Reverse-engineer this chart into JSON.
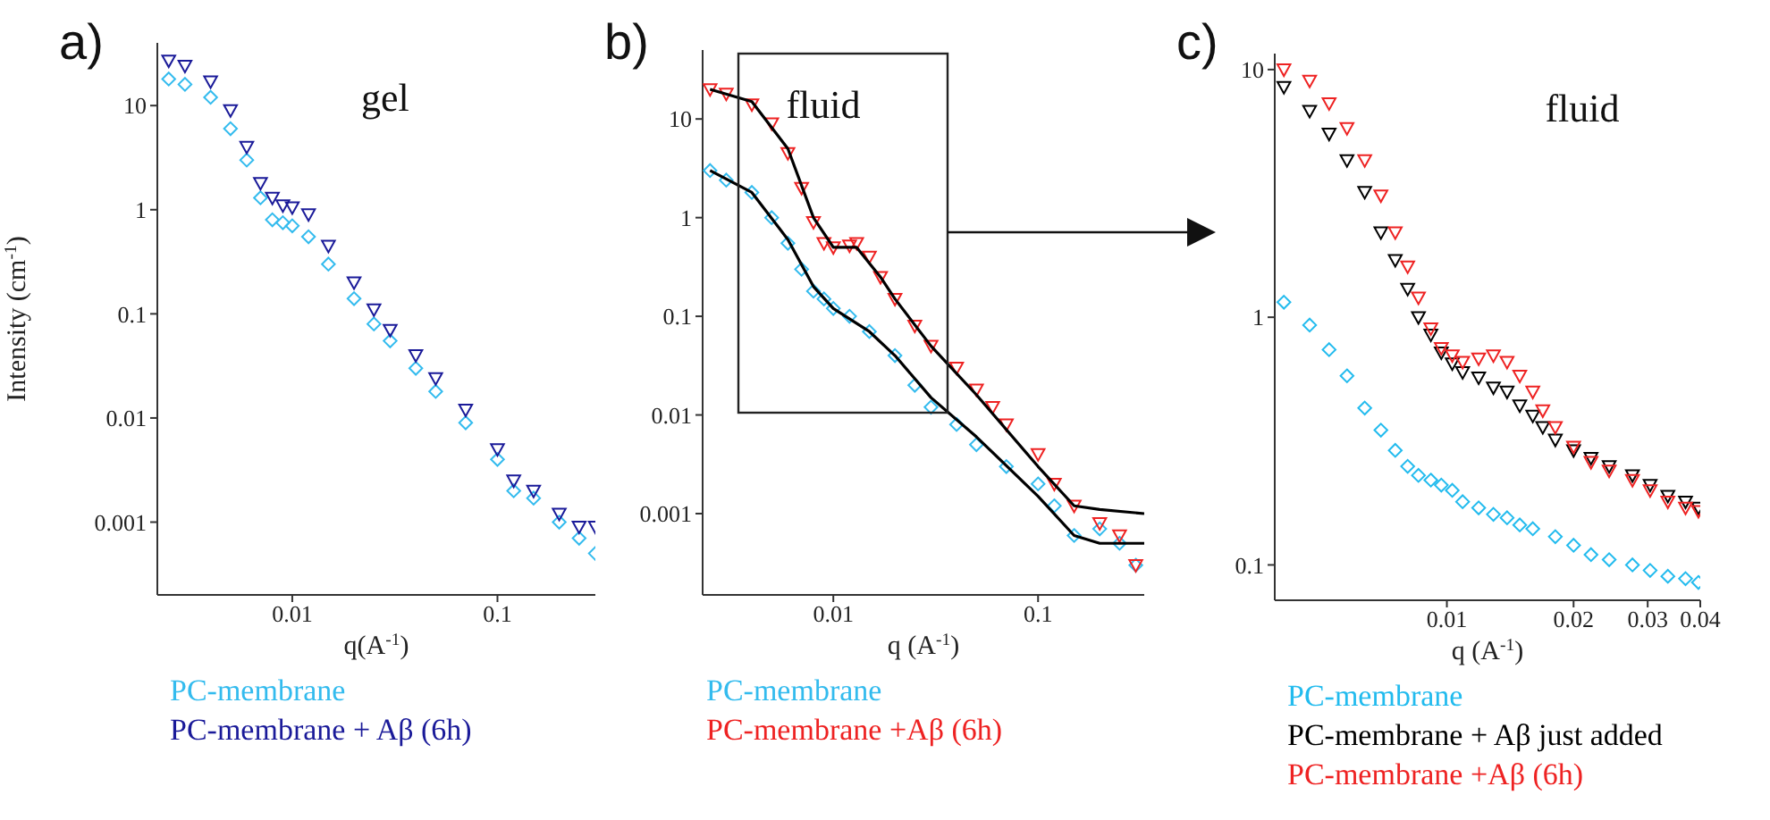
{
  "chart_data": [
    {
      "type": "scatter",
      "title": "gel",
      "annotations": [
        "a)"
      ],
      "xlabel": "q(A$^{-1}$)",
      "ylabel": "Intensity (cm$^{-1}$)",
      "log": "xy",
      "xlim": [
        0.0022,
        0.3
      ],
      "ylim": [
        0.0002,
        40
      ],
      "xticks": [
        0.01,
        0.1
      ],
      "yticks": [
        0.001,
        0.01,
        0.1,
        1,
        10
      ],
      "legend": "bottom",
      "series": [
        {
          "name": "PC-membrane",
          "color": "#33bbee",
          "marker": "diamond",
          "x": [
            0.0025,
            0.003,
            0.004,
            0.005,
            0.006,
            0.007,
            0.008,
            0.009,
            0.01,
            0.012,
            0.015,
            0.02,
            0.025,
            0.03,
            0.04,
            0.05,
            0.07,
            0.1,
            0.12,
            0.15,
            0.2,
            0.25,
            0.3
          ],
          "values": [
            18,
            16,
            12,
            6,
            3,
            1.3,
            0.8,
            0.75,
            0.7,
            0.55,
            0.3,
            0.14,
            0.08,
            0.055,
            0.03,
            0.018,
            0.009,
            0.004,
            0.002,
            0.0017,
            0.001,
            0.0007,
            0.0005
          ]
        },
        {
          "name": "PC-membrane + Aβ (6h)",
          "color": "#1a1a99",
          "marker": "triangle",
          "x": [
            0.0025,
            0.003,
            0.004,
            0.005,
            0.006,
            0.007,
            0.008,
            0.009,
            0.01,
            0.012,
            0.015,
            0.02,
            0.025,
            0.03,
            0.04,
            0.05,
            0.07,
            0.1,
            0.12,
            0.15,
            0.2,
            0.25,
            0.3
          ],
          "values": [
            27,
            24,
            17,
            9,
            4,
            1.8,
            1.3,
            1.1,
            1.05,
            0.9,
            0.45,
            0.2,
            0.11,
            0.07,
            0.04,
            0.024,
            0.012,
            0.005,
            0.0025,
            0.002,
            0.0012,
            0.0009,
            0.0009
          ]
        }
      ]
    },
    {
      "type": "scatter",
      "title": "fluid",
      "annotations": [
        "b)"
      ],
      "xlabel": "q (A$^{-1}$)",
      "log": "xy",
      "xlim": [
        0.0023,
        0.33
      ],
      "ylim": [
        0.00015,
        50
      ],
      "xticks": [
        0.01,
        0.1
      ],
      "yticks": [
        0.001,
        0.01,
        0.1,
        1,
        10
      ],
      "legend": "bottom",
      "series": [
        {
          "name": "PC-membrane",
          "color": "#33bbee",
          "marker": "diamond",
          "x": [
            0.0025,
            0.003,
            0.004,
            0.005,
            0.006,
            0.007,
            0.008,
            0.009,
            0.01,
            0.012,
            0.015,
            0.02,
            0.025,
            0.03,
            0.04,
            0.05,
            0.07,
            0.1,
            0.12,
            0.15,
            0.2,
            0.25,
            0.3
          ],
          "values": [
            3,
            2.4,
            1.8,
            1,
            0.55,
            0.3,
            0.18,
            0.15,
            0.12,
            0.1,
            0.07,
            0.04,
            0.02,
            0.012,
            0.008,
            0.005,
            0.003,
            0.002,
            0.0012,
            0.0006,
            0.0007,
            0.0005,
            0.0003
          ]
        },
        {
          "name": "PC-membrane +Aβ (6h)",
          "color": "#ee2222",
          "marker": "triangle",
          "x": [
            0.0025,
            0.003,
            0.004,
            0.005,
            0.006,
            0.007,
            0.008,
            0.009,
            0.01,
            0.012,
            0.013,
            0.015,
            0.017,
            0.02,
            0.025,
            0.03,
            0.04,
            0.05,
            0.06,
            0.07,
            0.1,
            0.12,
            0.15,
            0.2,
            0.25,
            0.3
          ],
          "values": [
            20,
            18,
            14,
            9,
            4.5,
            2,
            0.9,
            0.55,
            0.5,
            0.52,
            0.55,
            0.4,
            0.25,
            0.15,
            0.08,
            0.05,
            0.03,
            0.018,
            0.012,
            0.008,
            0.004,
            0.002,
            0.0012,
            0.0008,
            0.0006,
            0.0003
          ]
        },
        {
          "type": "line",
          "color": "#000000",
          "x": [
            0.0025,
            0.004,
            0.006,
            0.008,
            0.01,
            0.013,
            0.017,
            0.02,
            0.03,
            0.05,
            0.1,
            0.15,
            0.2,
            0.33
          ],
          "values": [
            20,
            15,
            5,
            1,
            0.5,
            0.5,
            0.25,
            0.15,
            0.05,
            0.016,
            0.003,
            0.0012,
            0.0011,
            0.001
          ]
        },
        {
          "type": "line",
          "color": "#000000",
          "x": [
            0.0025,
            0.004,
            0.006,
            0.008,
            0.01,
            0.015,
            0.02,
            0.03,
            0.05,
            0.1,
            0.15,
            0.2,
            0.33
          ],
          "values": [
            3,
            1.8,
            0.6,
            0.2,
            0.12,
            0.07,
            0.04,
            0.015,
            0.006,
            0.0015,
            0.0006,
            0.0005,
            0.0005
          ]
        }
      ]
    },
    {
      "type": "scatter",
      "title": "fluid",
      "annotations": [
        "c)"
      ],
      "xlabel": "q (A$^{-1}$)",
      "log": "xy",
      "xlim": [
        0.0039,
        0.04
      ],
      "ylim": [
        0.072,
        11.6
      ],
      "xticks": [
        0.01,
        0.02,
        0.03,
        0.04
      ],
      "yticks": [
        0.1,
        1,
        10
      ],
      "legend": "bottom",
      "series": [
        {
          "name": "PC-membrane",
          "color": "#22bbee",
          "marker": "diamond",
          "x": [
            0.0041,
            0.00472,
            0.00525,
            0.00579,
            0.00638,
            0.00697,
            0.00754,
            0.00807,
            0.00856,
            0.00916,
            0.0097,
            0.0103,
            0.0109,
            0.0119,
            0.0129,
            0.0139,
            0.0149,
            0.016,
            0.0181,
            0.02,
            0.022,
            0.0243,
            0.0276,
            0.0304,
            0.0335,
            0.0369,
            0.0396
          ],
          "values": [
            1.15,
            0.93,
            0.74,
            0.58,
            0.43,
            0.35,
            0.29,
            0.25,
            0.23,
            0.22,
            0.21,
            0.2,
            0.18,
            0.17,
            0.16,
            0.155,
            0.145,
            0.14,
            0.13,
            0.12,
            0.11,
            0.105,
            0.1,
            0.095,
            0.09,
            0.088,
            0.085
          ]
        },
        {
          "name": "PC-membrane + Aβ just added",
          "color": "#000000",
          "marker": "triangle",
          "x": [
            0.0041,
            0.00472,
            0.00525,
            0.00579,
            0.00638,
            0.00697,
            0.00754,
            0.00807,
            0.00856,
            0.00916,
            0.0097,
            0.0103,
            0.0109,
            0.0119,
            0.0129,
            0.0139,
            0.0149,
            0.016,
            0.0169,
            0.0181,
            0.02,
            0.022,
            0.0243,
            0.0276,
            0.0304,
            0.0335,
            0.0369,
            0.0396
          ],
          "values": [
            8.5,
            6.8,
            5.5,
            4.3,
            3.2,
            2.2,
            1.7,
            1.3,
            1,
            0.85,
            0.72,
            0.65,
            0.6,
            0.57,
            0.52,
            0.5,
            0.44,
            0.4,
            0.36,
            0.32,
            0.29,
            0.27,
            0.25,
            0.23,
            0.21,
            0.19,
            0.18,
            0.17
          ]
        },
        {
          "name": "PC-membrane +Aβ (6h)",
          "color": "#ee2222",
          "marker": "triangle",
          "x": [
            0.0041,
            0.00472,
            0.00525,
            0.00579,
            0.00638,
            0.00697,
            0.00754,
            0.00807,
            0.00856,
            0.00916,
            0.0097,
            0.0103,
            0.0109,
            0.0119,
            0.0129,
            0.0139,
            0.0149,
            0.016,
            0.0169,
            0.0181,
            0.02,
            0.022,
            0.0243,
            0.0276,
            0.0304,
            0.0335,
            0.0369,
            0.0396
          ],
          "values": [
            10,
            9,
            7.3,
            5.8,
            4.3,
            3.1,
            2.2,
            1.6,
            1.2,
            0.9,
            0.75,
            0.7,
            0.66,
            0.68,
            0.7,
            0.66,
            0.58,
            0.5,
            0.42,
            0.36,
            0.3,
            0.26,
            0.24,
            0.22,
            0.2,
            0.18,
            0.17,
            0.165
          ]
        }
      ]
    }
  ]
}
